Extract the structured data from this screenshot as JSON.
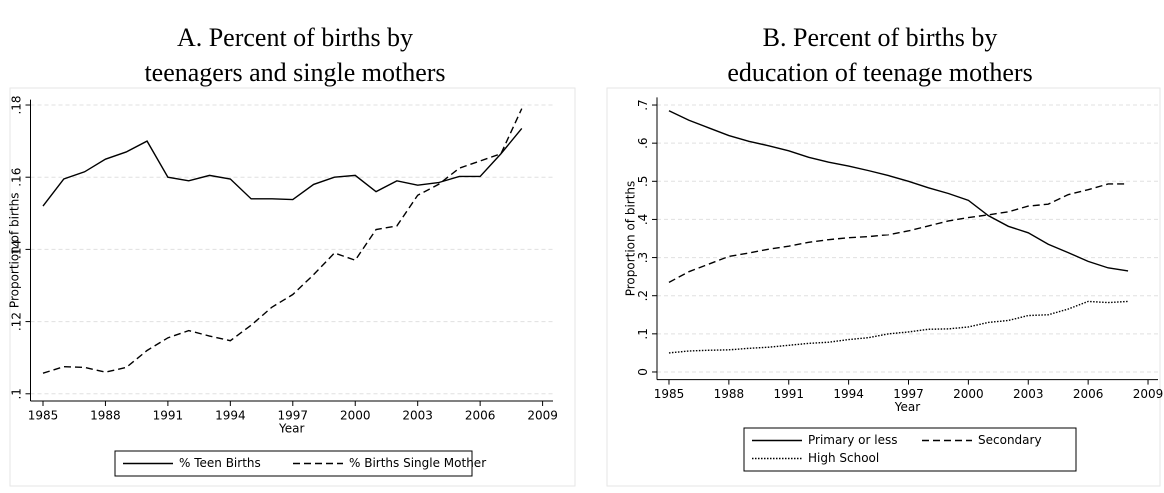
{
  "chart_data": [
    {
      "type": "line",
      "title": [
        "A. Percent of births by",
        "teenagers and single mothers"
      ],
      "x_label": "Year",
      "y_label": "Proportion of births",
      "x": [
        1985,
        1986,
        1987,
        1988,
        1989,
        1990,
        1991,
        1992,
        1993,
        1994,
        1995,
        1996,
        1997,
        1998,
        1999,
        2000,
        2001,
        2002,
        2003,
        2004,
        2005,
        2006,
        2007,
        2008
      ],
      "series": [
        {
          "name": "% Teen Births",
          "color": "#000000",
          "linestyle": "solid",
          "values": [
            0.152,
            0.1595,
            0.1615,
            0.165,
            0.167,
            0.17,
            0.16,
            0.159,
            0.1605,
            0.1595,
            0.154,
            0.154,
            0.1538,
            0.158,
            0.16,
            0.1605,
            0.156,
            0.159,
            0.1578,
            0.1585,
            0.1602,
            0.1602,
            0.1665,
            0.1735
          ]
        },
        {
          "name": "% Births Single Mother",
          "color": "#000000",
          "linestyle": "dashed",
          "values": [
            0.1057,
            0.1075,
            0.1073,
            0.106,
            0.1073,
            0.112,
            0.1155,
            0.1175,
            0.116,
            0.1147,
            0.119,
            0.124,
            0.1275,
            0.133,
            0.139,
            0.137,
            0.1455,
            0.1465,
            0.155,
            0.158,
            0.1625,
            0.1645,
            0.1665,
            0.179
          ]
        }
      ],
      "xlim": [
        1984.4,
        2009.5
      ],
      "xticks": [
        1985,
        1988,
        1991,
        1994,
        1997,
        2000,
        2003,
        2006,
        2009
      ],
      "ylim": [
        0.098,
        0.1815
      ],
      "yticks": [
        {
          "value": 0.1,
          "label": ".1"
        },
        {
          "value": 0.12,
          "label": ".12"
        },
        {
          "value": 0.14,
          "label": ".14"
        },
        {
          "value": 0.16,
          "label": ".16"
        },
        {
          "value": 0.18,
          "label": ".18"
        }
      ],
      "grid": true,
      "legend": "bottom"
    },
    {
      "type": "line",
      "title": [
        "B. Percent of births by",
        "education of teenage mothers"
      ],
      "x_label": "Year",
      "y_label": "Proportion of births",
      "x": [
        1985,
        1986,
        1987,
        1988,
        1989,
        1990,
        1991,
        1992,
        1993,
        1994,
        1995,
        1996,
        1997,
        1998,
        1999,
        2000,
        2001,
        2002,
        2003,
        2004,
        2005,
        2006,
        2007,
        2008
      ],
      "series": [
        {
          "name": "Primary or less",
          "color": "#000000",
          "linestyle": "solid",
          "values": [
            0.685,
            0.66,
            0.64,
            0.62,
            0.605,
            0.593,
            0.58,
            0.563,
            0.55,
            0.54,
            0.528,
            0.515,
            0.5,
            0.483,
            0.468,
            0.45,
            0.41,
            0.382,
            0.365,
            0.335,
            0.313,
            0.29,
            0.273,
            0.265
          ]
        },
        {
          "name": "Secondary",
          "color": "#000000",
          "linestyle": "dashed",
          "values": [
            0.235,
            0.263,
            0.283,
            0.303,
            0.312,
            0.322,
            0.33,
            0.34,
            0.347,
            0.352,
            0.355,
            0.36,
            0.37,
            0.383,
            0.396,
            0.405,
            0.412,
            0.42,
            0.435,
            0.44,
            0.465,
            0.478,
            0.493,
            0.493
          ]
        },
        {
          "name": "High School",
          "color": "#000000",
          "linestyle": "dotted",
          "values": [
            0.05,
            0.055,
            0.057,
            0.058,
            0.062,
            0.065,
            0.07,
            0.075,
            0.078,
            0.085,
            0.09,
            0.1,
            0.105,
            0.112,
            0.113,
            0.118,
            0.13,
            0.135,
            0.148,
            0.15,
            0.165,
            0.185,
            0.182,
            0.185
          ]
        }
      ],
      "xlim": [
        1984.4,
        2009.5
      ],
      "xticks": [
        1985,
        1988,
        1991,
        1994,
        1997,
        2000,
        2003,
        2006,
        2009
      ],
      "ylim": [
        -0.02,
        0.72
      ],
      "yticks": [
        0,
        {
          "value": 0.1,
          "label": ".1"
        },
        {
          "value": 0.2,
          "label": ".2"
        },
        {
          "value": 0.3,
          "label": ".3"
        },
        {
          "value": 0.4,
          "label": ".4"
        },
        {
          "value": 0.5,
          "label": ".5"
        },
        {
          "value": 0.6,
          "label": ".6"
        },
        {
          "value": 0.7,
          "label": ".7"
        }
      ],
      "grid": true,
      "legend": "bottom"
    }
  ]
}
